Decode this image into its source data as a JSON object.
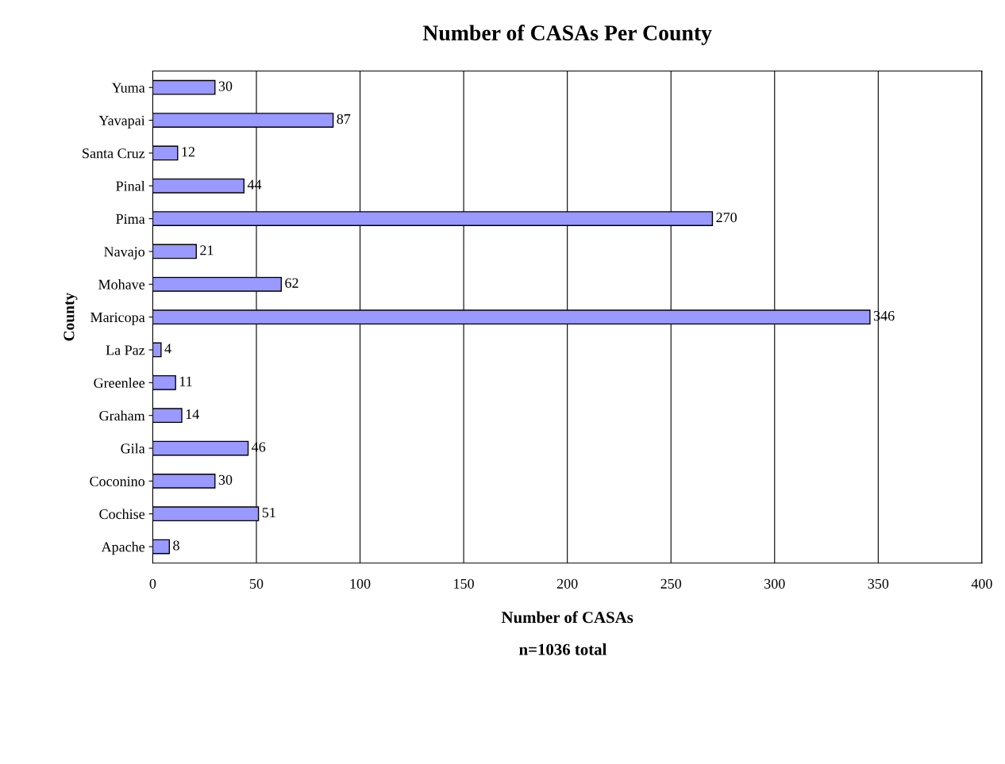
{
  "chart_data": {
    "type": "bar",
    "orientation": "horizontal",
    "title": "Number of CASAs Per County",
    "categories": [
      "Yuma",
      "Yavapai",
      "Santa Cruz",
      "Pinal",
      "Pima",
      "Navajo",
      "Mohave",
      "Maricopa",
      "La Paz",
      "Greenlee",
      "Graham",
      "Gila",
      "Coconino",
      "Cochise",
      "Apache"
    ],
    "series": [
      {
        "color": "#9999ff",
        "values": [
          30,
          87,
          12,
          44,
          270,
          21,
          62,
          346,
          4,
          11,
          14,
          46,
          30,
          51,
          8
        ]
      }
    ],
    "data_labels": true,
    "xlabel": "Number of CASAs",
    "ylabel": "County",
    "annotations": [
      "n=1036 total"
    ],
    "xlim": [
      0,
      400
    ],
    "xticks": [
      0,
      50,
      100,
      150,
      200,
      250,
      300,
      350,
      400
    ],
    "grid": "x",
    "legend": false
  }
}
